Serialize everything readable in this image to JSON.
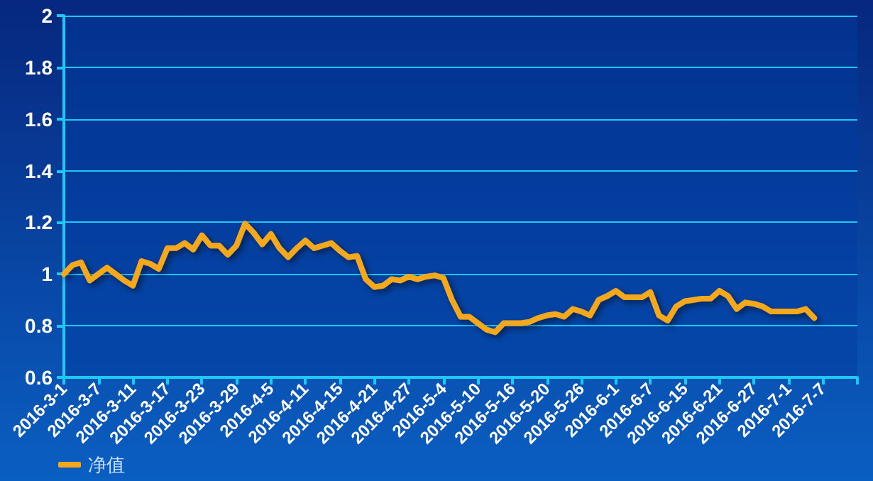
{
  "chart_data": {
    "type": "line",
    "categories": [
      "2016-3-1",
      null,
      null,
      null,
      "2016-3-7",
      null,
      null,
      null,
      "2016-3-11",
      null,
      null,
      null,
      "2016-3-17",
      null,
      null,
      null,
      "2016-3-23",
      null,
      null,
      null,
      "2016-3-29",
      null,
      null,
      null,
      "2016-4-5",
      null,
      null,
      null,
      "2016-4-11",
      null,
      null,
      null,
      "2016-4-15",
      null,
      null,
      null,
      "2016-4-21",
      null,
      null,
      null,
      "2016-4-27",
      null,
      null,
      null,
      "2016-5-4",
      null,
      null,
      null,
      "2016-5-10",
      null,
      null,
      null,
      "2016-5-16",
      null,
      null,
      null,
      "2016-5-20",
      null,
      null,
      null,
      "2016-5-26",
      null,
      null,
      null,
      "2016-6-1",
      null,
      null,
      null,
      "2016-6-7",
      null,
      null,
      null,
      "2016-6-15",
      null,
      null,
      null,
      "2016-6-21",
      null,
      null,
      null,
      "2016-6-27",
      null,
      null,
      null,
      "2016-7-1",
      null,
      null,
      null,
      "2016-7-7",
      null,
      null,
      null,
      null
    ],
    "series": [
      {
        "name": "净值",
        "color": "#f5a81c",
        "values": [
          1.0,
          1.035,
          1.045,
          0.975,
          1.0,
          1.025,
          1.0,
          0.975,
          0.955,
          1.05,
          1.04,
          1.02,
          1.1,
          1.1,
          1.12,
          1.095,
          1.15,
          1.11,
          1.11,
          1.075,
          1.11,
          1.195,
          1.16,
          1.115,
          1.155,
          1.1,
          1.065,
          1.1,
          1.13,
          1.1,
          1.11,
          1.12,
          1.09,
          1.065,
          1.07,
          0.98,
          0.95,
          0.955,
          0.98,
          0.975,
          0.99,
          0.98,
          0.99,
          0.995,
          0.985,
          0.9,
          0.835,
          0.835,
          0.81,
          0.785,
          0.775,
          0.81,
          0.81,
          0.81,
          0.815,
          0.83,
          0.84,
          0.845,
          0.835,
          0.865,
          0.855,
          0.84,
          0.9,
          0.915,
          0.935,
          0.91,
          0.91,
          0.91,
          0.93,
          0.84,
          0.82,
          0.875,
          0.895,
          0.9,
          0.905,
          0.905,
          0.935,
          0.915,
          0.865,
          0.89,
          0.885,
          0.875,
          0.855,
          0.855,
          0.855,
          0.855,
          0.865,
          0.83,
          null,
          null,
          null,
          null,
          null
        ]
      }
    ],
    "ylim": [
      0.6,
      2
    ],
    "yticks": [
      0.6,
      0.8,
      1,
      1.2,
      1.4,
      1.6,
      1.8,
      2
    ],
    "grid": "y",
    "legend": "bottom left",
    "marker": "none",
    "line_style": "solid"
  }
}
